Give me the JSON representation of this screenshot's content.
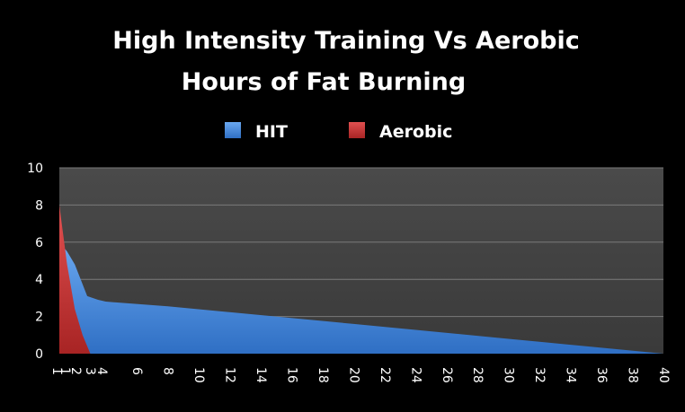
{
  "chart_data": {
    "type": "area",
    "title_line1": "High Intensity Training Vs Aerobic",
    "title_line2": "Hours of Fat Burning",
    "xlabel": "",
    "ylabel": "",
    "ylim": [
      0,
      10
    ],
    "xlim": [
      1,
      40
    ],
    "y_ticks": [
      "0",
      "2",
      "4",
      "6",
      "8",
      "10"
    ],
    "x_ticks": [
      "1",
      "1",
      "2",
      "3",
      "4",
      "6",
      "8",
      "10",
      "12",
      "14",
      "16",
      "18",
      "20",
      "22",
      "24",
      "26",
      "28",
      "30",
      "32",
      "34",
      "36",
      "38",
      "40"
    ],
    "grid": true,
    "legend_position": "top-center",
    "series": [
      {
        "name": "HIT",
        "color": "#4a8ad8",
        "points": [
          [
            1,
            6
          ],
          [
            1.5,
            5.5
          ],
          [
            2,
            4.8
          ],
          [
            2.8,
            3.1
          ],
          [
            3.5,
            2.9
          ],
          [
            4,
            2.8
          ],
          [
            8,
            2.55
          ],
          [
            20,
            1.6
          ],
          [
            30,
            0.8
          ],
          [
            40,
            0
          ]
        ]
      },
      {
        "name": "Aerobic",
        "color": "#c83434",
        "points": [
          [
            1,
            8
          ],
          [
            1.5,
            4.8
          ],
          [
            2,
            2.4
          ],
          [
            2.5,
            1
          ],
          [
            3,
            0
          ]
        ]
      }
    ]
  }
}
